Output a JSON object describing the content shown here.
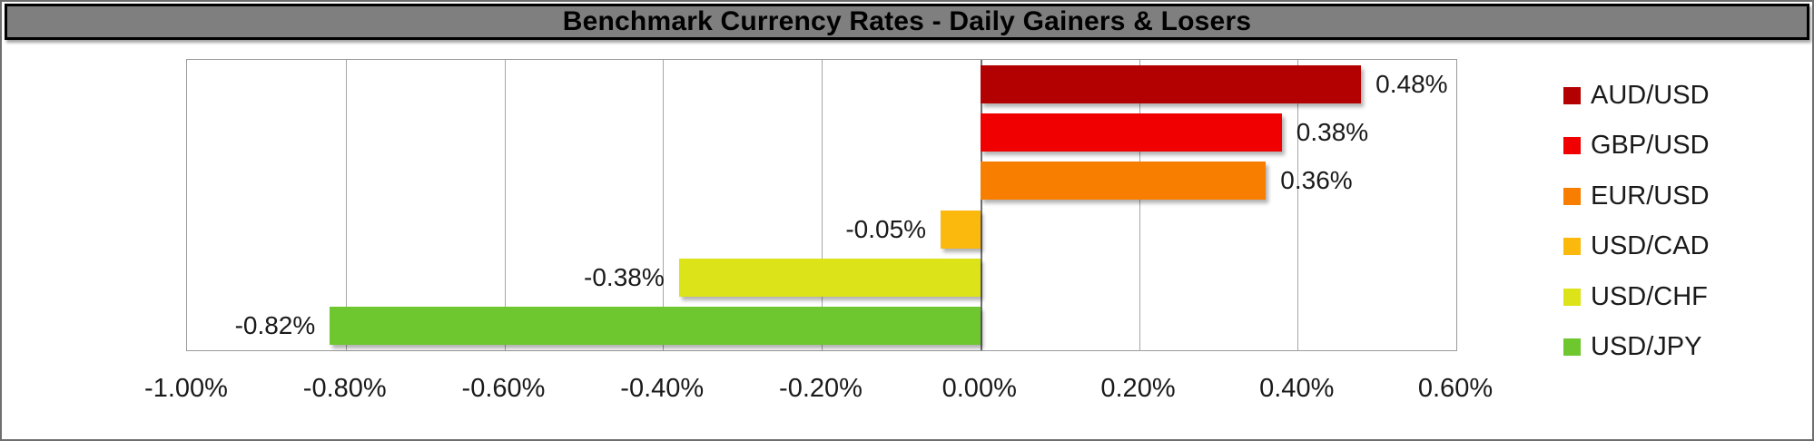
{
  "title": "Benchmark Currency Rates - Daily Gainers & Losers",
  "colors": {
    "title_bg": "#7f7f7f",
    "title_text": "#000000",
    "grid": "#a6a6a6",
    "plot_border": "#9b9b9b"
  },
  "chart_data": {
    "type": "bar",
    "orientation": "horizontal",
    "title": "Benchmark Currency Rates - Daily Gainers & Losers",
    "grid": true,
    "legend_position": "right",
    "xlim": [
      -1.0,
      0.6
    ],
    "x_tick_step": 0.2,
    "x_tick_labels": [
      "-1.00%",
      "-0.80%",
      "-0.60%",
      "-0.40%",
      "-0.20%",
      "0.00%",
      "0.20%",
      "0.40%",
      "0.60%"
    ],
    "series": [
      {
        "name": "AUD/USD",
        "value": 0.48,
        "label": "0.48%",
        "color": "#b30000"
      },
      {
        "name": "GBP/USD",
        "value": 0.38,
        "label": "0.38%",
        "color": "#f00000"
      },
      {
        "name": "EUR/USD",
        "value": 0.36,
        "label": "0.36%",
        "color": "#f87e00"
      },
      {
        "name": "USD/CAD",
        "value": -0.05,
        "label": "-0.05%",
        "color": "#fbb90d"
      },
      {
        "name": "USD/CHF",
        "value": -0.38,
        "label": "-0.38%",
        "color": "#dce318"
      },
      {
        "name": "USD/JPY",
        "value": -0.82,
        "label": "-0.82%",
        "color": "#6fc72f"
      }
    ]
  }
}
